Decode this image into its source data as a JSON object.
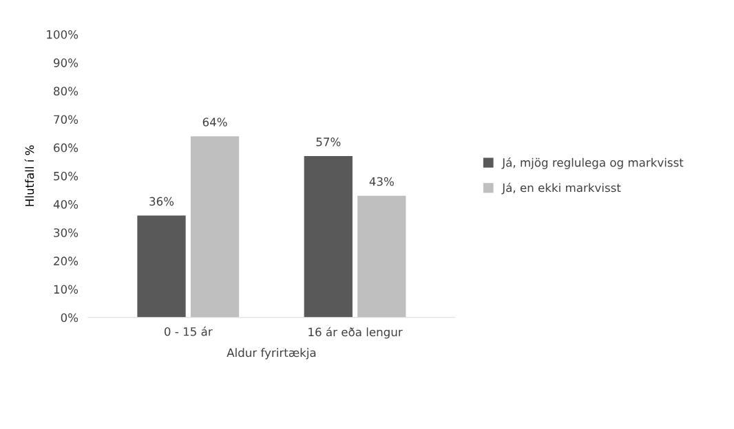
{
  "chart_data": {
    "type": "bar",
    "xlabel": "Aldur fyrirtækja",
    "ylabel": "Hlutfall í %",
    "categories": [
      "0 - 15 ár",
      "16 ár eða lengur"
    ],
    "series": [
      {
        "name": "Já, mjög reglulega og markvisst",
        "color": "#595959",
        "values": [
          36,
          57
        ],
        "value_labels": [
          "36%",
          "57%"
        ]
      },
      {
        "name": "Já, en ekki markvisst",
        "color": "#bfbfbf",
        "values": [
          64,
          43
        ],
        "value_labels": [
          "64%",
          "43%"
        ]
      }
    ],
    "ylim": [
      0,
      100
    ],
    "yticks": [
      {
        "value": 0,
        "label": "0%"
      },
      {
        "value": 10,
        "label": "10%"
      },
      {
        "value": 20,
        "label": "20%"
      },
      {
        "value": 30,
        "label": "30%"
      },
      {
        "value": 40,
        "label": "40%"
      },
      {
        "value": 50,
        "label": "50%"
      },
      {
        "value": 60,
        "label": "60%"
      },
      {
        "value": 70,
        "label": "70%"
      },
      {
        "value": 80,
        "label": "80%"
      },
      {
        "value": 90,
        "label": "90%"
      },
      {
        "value": 100,
        "label": "100%"
      }
    ],
    "grid": false,
    "legend": "right"
  }
}
